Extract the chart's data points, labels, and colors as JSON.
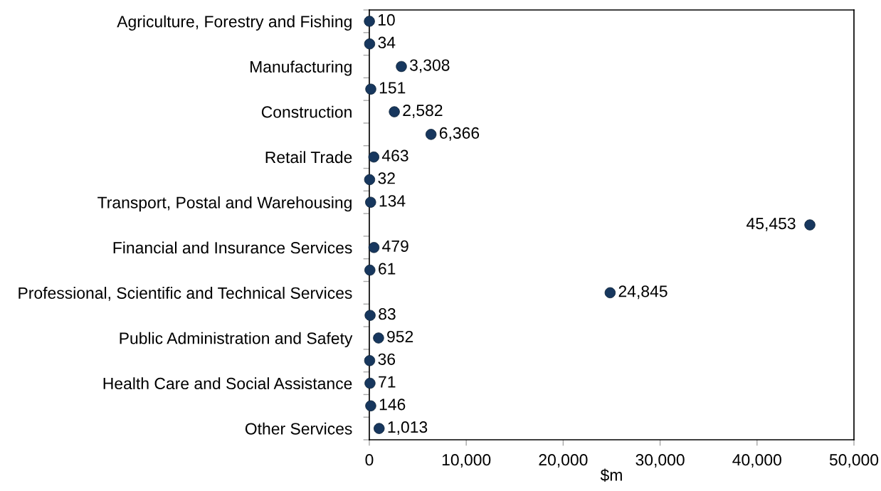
{
  "chart_data": {
    "type": "scatter",
    "orientation": "horizontal",
    "marker": "circle",
    "color": "#17375e",
    "xlabel": "$m",
    "categories": [
      "Agriculture, Forestry and Fishing",
      null,
      "Manufacturing",
      null,
      "Construction",
      null,
      "Retail Trade",
      null,
      "Transport, Postal and Warehousing",
      null,
      "Financial and Insurance Services",
      null,
      "Professional, Scientific and Technical Services",
      null,
      "Public Administration and Safety",
      null,
      "Health Care and Social Assistance",
      null,
      "Other Services"
    ],
    "values": [
      10,
      34,
      3308,
      151,
      2582,
      6366,
      463,
      32,
      134,
      45453,
      479,
      61,
      24845,
      83,
      952,
      36,
      71,
      146,
      1013
    ],
    "value_labels": [
      "10",
      "34",
      "3,308",
      "151",
      "2,582",
      "6,366",
      "463",
      "32",
      "134",
      "45,453",
      "479",
      "61",
      "24,845",
      "83",
      "952",
      "36",
      "71",
      "146",
      "1,013"
    ],
    "xlim": [
      0,
      50000
    ],
    "xticks": [
      0,
      {
        "value": 10000,
        "label": "10,000"
      },
      {
        "value": 20000,
        "label": "20,000"
      },
      {
        "value": 30000,
        "label": "30,000"
      },
      {
        "value": 40000,
        "label": "40,000"
      },
      {
        "value": 50000,
        "label": "50,000"
      }
    ]
  }
}
